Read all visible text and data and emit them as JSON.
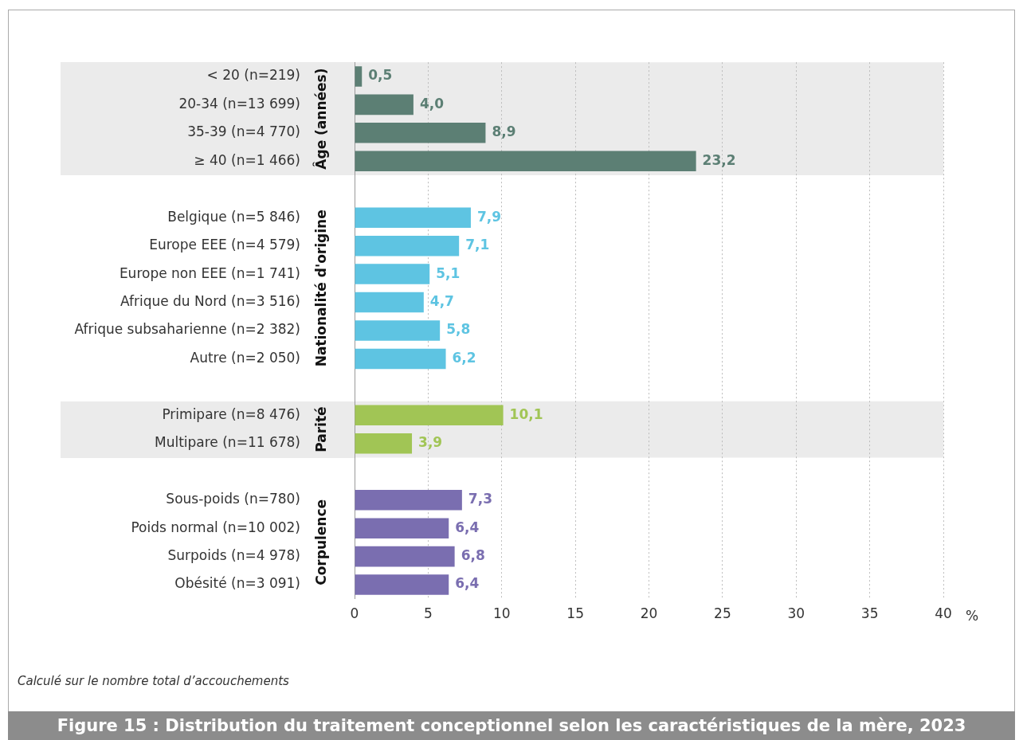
{
  "chart_data": {
    "type": "bar",
    "orientation": "horizontal",
    "title": "Figure 15 : Distribution du traitement conceptionnel selon les caractéristiques de la mère, 2023",
    "xlabel": "%",
    "annotations": [
      "Calculé sur le nombre total d’accouchements"
    ],
    "categories": [
      "< 20 (n=219)",
      "20-34 (n=13 699)",
      "35-39 (n=4 770)",
      "≥ 40 (n=1 466)",
      null,
      "Belgique (n=5 846)",
      "Europe EEE (n=4 579)",
      "Europe non EEE (n=1 741)",
      "Afrique du Nord (n=3 516)",
      "Afrique subsaharienne (n=2 382)",
      "Autre (n=2 050)",
      null,
      "Primipare (n=8 476)",
      "Multipare (n=11 678)",
      null,
      "Sous-poids (n=780)",
      "Poids normal (n=10 002)",
      "Surpoids (n=4 978)",
      "Obésité (n=3 091)"
    ],
    "series": [
      {
        "name": "Âge (années)",
        "color": "#5c7f74",
        "values": [
          0.5,
          4.0,
          8.9,
          23.2,
          null,
          null,
          null,
          null,
          null,
          null,
          null,
          null,
          null,
          null,
          null,
          null,
          null,
          null,
          null
        ],
        "value_labels": [
          "0,5",
          "4,0",
          "8,9",
          "23,2",
          null,
          null,
          null,
          null,
          null,
          null,
          null,
          null,
          null,
          null,
          null,
          null,
          null,
          null,
          null
        ]
      },
      {
        "name": "Nationalité d'origine",
        "color": "#5ec4e2",
        "values": [
          null,
          null,
          null,
          null,
          null,
          7.9,
          7.1,
          5.1,
          4.7,
          5.8,
          6.2,
          null,
          null,
          null,
          null,
          null,
          null,
          null,
          null
        ],
        "value_labels": [
          null,
          null,
          null,
          null,
          null,
          "7,9",
          "7,1",
          "5,1",
          "4,7",
          "5,8",
          "6,2",
          null,
          null,
          null,
          null,
          null,
          null,
          null,
          null
        ]
      },
      {
        "name": "Parité",
        "color": "#a1c555",
        "values": [
          null,
          null,
          null,
          null,
          null,
          null,
          null,
          null,
          null,
          null,
          null,
          null,
          10.1,
          3.9,
          null,
          null,
          null,
          null,
          null
        ],
        "value_labels": [
          null,
          null,
          null,
          null,
          null,
          null,
          null,
          null,
          null,
          null,
          null,
          null,
          "10,1",
          "3,9",
          null,
          null,
          null,
          null,
          null
        ]
      },
      {
        "name": "Corpulence",
        "color": "#7a6eb0",
        "values": [
          null,
          null,
          null,
          null,
          null,
          null,
          null,
          null,
          null,
          null,
          null,
          null,
          null,
          null,
          null,
          7.3,
          6.4,
          6.8,
          6.4
        ],
        "value_labels": [
          null,
          null,
          null,
          null,
          null,
          null,
          null,
          null,
          null,
          null,
          null,
          null,
          null,
          null,
          null,
          "7,3",
          "6,4",
          "6,8",
          "6,4"
        ]
      }
    ],
    "xlim": [
      0,
      40
    ],
    "xticks": [
      0,
      5,
      10,
      15,
      20,
      25,
      30,
      35,
      40
    ],
    "grid": "x",
    "legend": false,
    "bands": [
      {
        "axis": "y",
        "from": "< 20 (n=219)",
        "to": "≥ 40 (n=1 466)",
        "color": "#ebebeb"
      },
      {
        "axis": "y",
        "from": "Primipare (n=8 476)",
        "to": "Multipare (n=11 678)",
        "color": "#ebebeb"
      }
    ]
  }
}
